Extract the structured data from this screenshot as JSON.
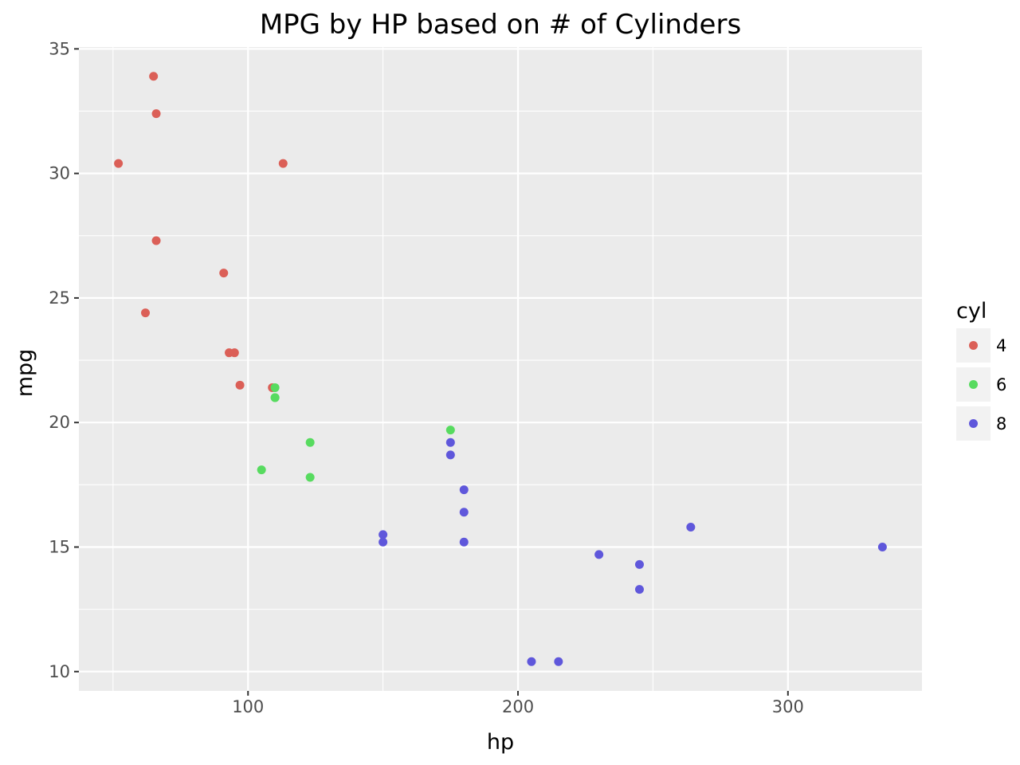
{
  "chart_data": {
    "type": "scatter",
    "title": "MPG by HP based on # of Cylinders",
    "xlabel": "hp",
    "ylabel": "mpg",
    "xlim": [
      37.35,
      349.65
    ],
    "ylim": [
      9.225,
      35.075
    ],
    "x_ticks": [
      100,
      200,
      300
    ],
    "y_ticks": [
      10,
      15,
      20,
      25,
      30,
      35
    ],
    "grid": true,
    "legend": {
      "title": "cyl",
      "position": "right"
    },
    "series": [
      {
        "name": "4",
        "color": "#DB5F57",
        "points": [
          [
            93,
            22.8
          ],
          [
            62,
            24.4
          ],
          [
            95,
            22.8
          ],
          [
            66,
            32.4
          ],
          [
            52,
            30.4
          ],
          [
            65,
            33.9
          ],
          [
            97,
            21.5
          ],
          [
            66,
            27.3
          ],
          [
            91,
            26.0
          ],
          [
            113,
            30.4
          ],
          [
            109,
            21.4
          ]
        ]
      },
      {
        "name": "6",
        "color": "#57DB5F",
        "points": [
          [
            110,
            21.0
          ],
          [
            110,
            21.0
          ],
          [
            110,
            21.4
          ],
          [
            105,
            18.1
          ],
          [
            123,
            19.2
          ],
          [
            123,
            17.8
          ],
          [
            175,
            19.7
          ]
        ]
      },
      {
        "name": "8",
        "color": "#5F57DB",
        "points": [
          [
            175,
            18.7
          ],
          [
            245,
            14.3
          ],
          [
            180,
            16.4
          ],
          [
            180,
            17.3
          ],
          [
            180,
            15.2
          ],
          [
            205,
            10.4
          ],
          [
            215,
            10.4
          ],
          [
            230,
            14.7
          ],
          [
            150,
            15.5
          ],
          [
            150,
            15.2
          ],
          [
            245,
            13.3
          ],
          [
            175,
            19.2
          ],
          [
            264,
            15.8
          ],
          [
            335,
            15.0
          ]
        ]
      }
    ]
  }
}
